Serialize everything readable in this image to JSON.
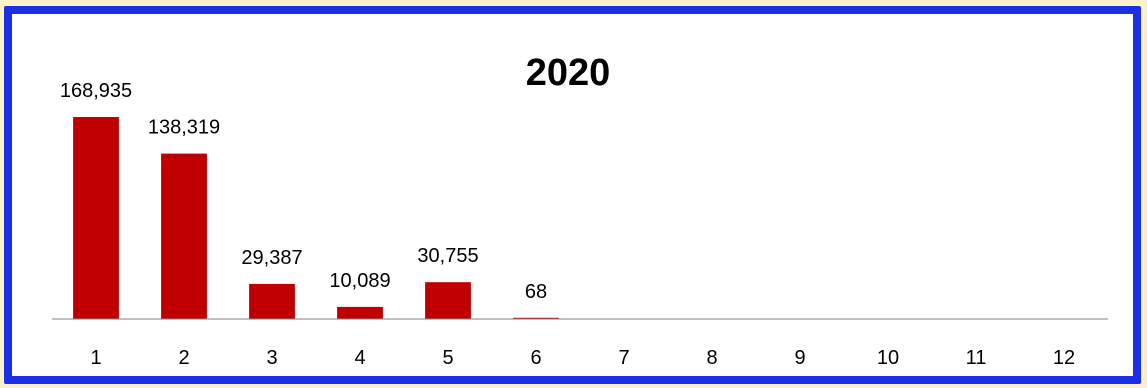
{
  "chart_data": {
    "type": "bar",
    "title": "2020",
    "categories": [
      "1",
      "2",
      "3",
      "4",
      "5",
      "6",
      "7",
      "8",
      "9",
      "10",
      "11",
      "12"
    ],
    "values": [
      168935,
      138319,
      29387,
      10089,
      30755,
      68,
      null,
      null,
      null,
      null,
      null,
      null
    ],
    "data_labels": [
      "168,935",
      "138,319",
      "29,387",
      "10,089",
      "30,755",
      "68",
      "",
      "",
      "",
      "",
      "",
      ""
    ],
    "xlabel": "",
    "ylabel": "",
    "ylim": [
      0,
      168935
    ],
    "grid": false,
    "legend": "none",
    "colors": {
      "bar": "#c00000",
      "border": "#1a2fe6",
      "axis": "#808080",
      "background": "#fdf2c7"
    }
  }
}
